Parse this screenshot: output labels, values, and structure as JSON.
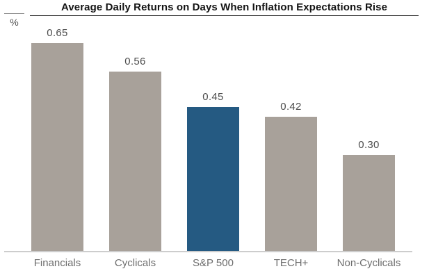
{
  "header": {
    "title": "Average Daily Returns on Days When Inflation Expectations Rise",
    "y_axis_unit": "%"
  },
  "chart_data": {
    "type": "bar",
    "title": "Average Daily Returns on Days When Inflation Expectations Rise",
    "xlabel": "",
    "ylabel": "%",
    "categories": [
      "Financials",
      "Cyclicals",
      "S&P 500",
      "TECH+",
      "Non-Cyclicals"
    ],
    "values": [
      0.65,
      0.56,
      0.45,
      0.42,
      0.3
    ],
    "value_labels": [
      "0.65",
      "0.56",
      "0.45",
      "0.42",
      "0.30"
    ],
    "ylim": [
      0,
      0.79
    ],
    "grid": false,
    "legend": "none",
    "highlight_category": "S&P 500",
    "colors": {
      "bar_default": "#a8a19a",
      "bar_highlight": "#255a82",
      "value_label": "#4d4d4d",
      "axis_label": "#6e6e6e",
      "axis_line": "#cdcdcd",
      "title": "#141414"
    }
  }
}
